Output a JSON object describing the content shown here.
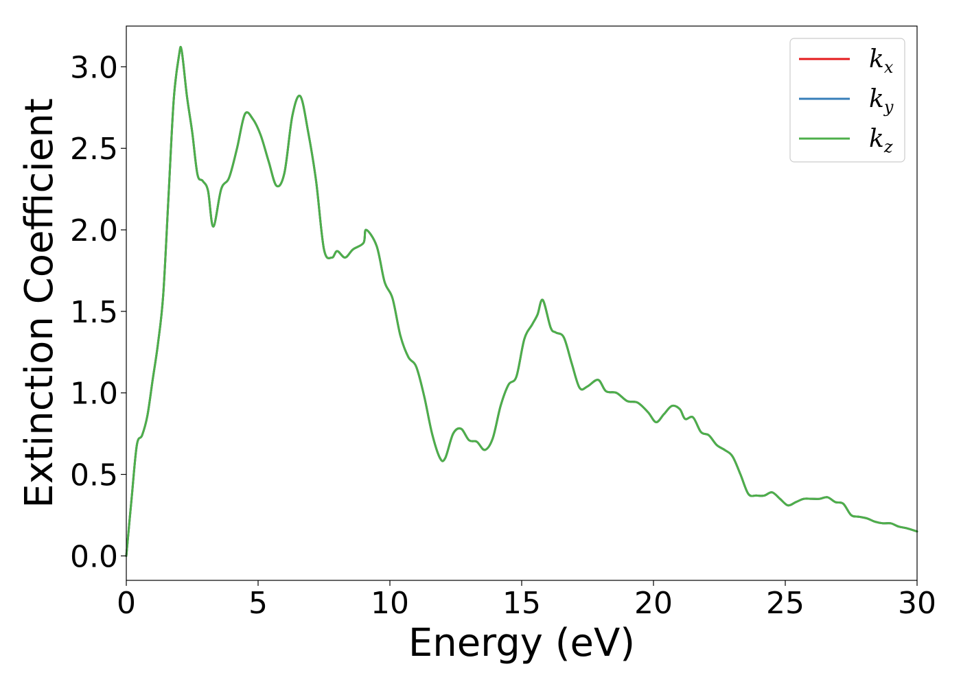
{
  "chart_data": {
    "type": "line",
    "xlabel": "Energy (eV)",
    "ylabel": "Extinction Coefficient",
    "xlim": [
      0,
      30
    ],
    "ylim": [
      -0.15,
      3.25
    ],
    "xticks": [
      0,
      5,
      10,
      15,
      20,
      25,
      30
    ],
    "yticks": [
      0.0,
      0.5,
      1.0,
      1.5,
      2.0,
      2.5,
      3.0
    ],
    "xtick_labels": [
      "0",
      "5",
      "10",
      "15",
      "20",
      "25",
      "30"
    ],
    "ytick_labels": [
      "0.0",
      "0.5",
      "1.0",
      "1.5",
      "2.0",
      "2.5",
      "3.0"
    ],
    "grid": false,
    "legend_position": "top-right",
    "x": [
      0,
      0.2,
      0.4,
      0.6,
      0.8,
      1.0,
      1.2,
      1.4,
      1.6,
      1.8,
      2.0,
      2.1,
      2.3,
      2.5,
      2.7,
      2.9,
      3.1,
      3.3,
      3.6,
      3.9,
      4.2,
      4.5,
      4.8,
      5.1,
      5.4,
      5.7,
      6.0,
      6.3,
      6.6,
      6.9,
      7.2,
      7.5,
      7.8,
      8.0,
      8.3,
      8.6,
      9.0,
      9.1,
      9.5,
      9.8,
      10.1,
      10.4,
      10.7,
      11.0,
      11.3,
      11.6,
      11.9,
      12.1,
      12.4,
      12.7,
      13.0,
      13.3,
      13.6,
      13.9,
      14.2,
      14.5,
      14.8,
      15.1,
      15.4,
      15.6,
      15.8,
      16.1,
      16.3,
      16.6,
      16.9,
      17.2,
      17.5,
      17.9,
      18.2,
      18.6,
      19.0,
      19.4,
      19.8,
      20.1,
      20.4,
      20.7,
      21.0,
      21.2,
      21.5,
      21.8,
      22.1,
      22.4,
      22.7,
      23.0,
      23.3,
      23.6,
      23.9,
      24.2,
      24.5,
      24.8,
      25.1,
      25.4,
      25.7,
      26.0,
      26.3,
      26.6,
      26.9,
      27.2,
      27.5,
      27.8,
      28.1,
      28.4,
      28.7,
      29.0,
      29.3,
      29.6,
      30.0
    ],
    "series": [
      {
        "name": "k",
        "subscript": "x",
        "color": "#e41a1c",
        "values": [
          0.0,
          0.35,
          0.68,
          0.74,
          0.86,
          1.08,
          1.3,
          1.6,
          2.2,
          2.8,
          3.07,
          3.1,
          2.82,
          2.6,
          2.34,
          2.3,
          2.24,
          2.02,
          2.25,
          2.32,
          2.5,
          2.71,
          2.68,
          2.58,
          2.42,
          2.27,
          2.35,
          2.7,
          2.82,
          2.6,
          2.3,
          1.88,
          1.83,
          1.87,
          1.83,
          1.88,
          1.92,
          2.0,
          1.9,
          1.68,
          1.58,
          1.35,
          1.22,
          1.16,
          0.98,
          0.75,
          0.6,
          0.6,
          0.75,
          0.78,
          0.71,
          0.7,
          0.65,
          0.72,
          0.92,
          1.05,
          1.1,
          1.33,
          1.42,
          1.48,
          1.57,
          1.4,
          1.37,
          1.34,
          1.18,
          1.03,
          1.04,
          1.08,
          1.01,
          1.0,
          0.95,
          0.94,
          0.88,
          0.82,
          0.87,
          0.92,
          0.9,
          0.84,
          0.85,
          0.76,
          0.74,
          0.68,
          0.65,
          0.61,
          0.5,
          0.38,
          0.37,
          0.37,
          0.39,
          0.35,
          0.31,
          0.33,
          0.35,
          0.35,
          0.35,
          0.36,
          0.33,
          0.32,
          0.25,
          0.24,
          0.23,
          0.21,
          0.2,
          0.2,
          0.18,
          0.17,
          0.15
        ]
      },
      {
        "name": "k",
        "subscript": "y",
        "color": "#377eb8",
        "values": [
          0.0,
          0.35,
          0.68,
          0.74,
          0.86,
          1.08,
          1.3,
          1.6,
          2.2,
          2.8,
          3.07,
          3.1,
          2.82,
          2.6,
          2.34,
          2.3,
          2.24,
          2.02,
          2.25,
          2.32,
          2.5,
          2.71,
          2.68,
          2.58,
          2.42,
          2.27,
          2.35,
          2.7,
          2.82,
          2.6,
          2.3,
          1.88,
          1.83,
          1.87,
          1.83,
          1.88,
          1.92,
          2.0,
          1.9,
          1.68,
          1.58,
          1.35,
          1.22,
          1.16,
          0.98,
          0.75,
          0.6,
          0.6,
          0.75,
          0.78,
          0.71,
          0.7,
          0.65,
          0.72,
          0.92,
          1.05,
          1.1,
          1.33,
          1.42,
          1.48,
          1.57,
          1.4,
          1.37,
          1.34,
          1.18,
          1.03,
          1.04,
          1.08,
          1.01,
          1.0,
          0.95,
          0.94,
          0.88,
          0.82,
          0.87,
          0.92,
          0.9,
          0.84,
          0.85,
          0.76,
          0.74,
          0.68,
          0.65,
          0.61,
          0.5,
          0.38,
          0.37,
          0.37,
          0.39,
          0.35,
          0.31,
          0.33,
          0.35,
          0.35,
          0.35,
          0.36,
          0.33,
          0.32,
          0.25,
          0.24,
          0.23,
          0.21,
          0.2,
          0.2,
          0.18,
          0.17,
          0.15
        ]
      },
      {
        "name": "k",
        "subscript": "z",
        "color": "#4daf4a",
        "values": [
          0.0,
          0.35,
          0.68,
          0.74,
          0.86,
          1.08,
          1.3,
          1.6,
          2.2,
          2.8,
          3.07,
          3.1,
          2.82,
          2.6,
          2.34,
          2.3,
          2.24,
          2.02,
          2.25,
          2.32,
          2.5,
          2.71,
          2.68,
          2.58,
          2.42,
          2.27,
          2.35,
          2.7,
          2.82,
          2.6,
          2.3,
          1.88,
          1.83,
          1.87,
          1.83,
          1.88,
          1.92,
          2.0,
          1.9,
          1.68,
          1.58,
          1.35,
          1.22,
          1.16,
          0.98,
          0.75,
          0.6,
          0.6,
          0.75,
          0.78,
          0.71,
          0.7,
          0.65,
          0.72,
          0.92,
          1.05,
          1.1,
          1.33,
          1.42,
          1.48,
          1.57,
          1.4,
          1.37,
          1.34,
          1.18,
          1.03,
          1.04,
          1.08,
          1.01,
          1.0,
          0.95,
          0.94,
          0.88,
          0.82,
          0.87,
          0.92,
          0.9,
          0.84,
          0.85,
          0.76,
          0.74,
          0.68,
          0.65,
          0.61,
          0.5,
          0.38,
          0.37,
          0.37,
          0.39,
          0.35,
          0.31,
          0.33,
          0.35,
          0.35,
          0.35,
          0.36,
          0.33,
          0.32,
          0.25,
          0.24,
          0.23,
          0.21,
          0.2,
          0.2,
          0.18,
          0.17,
          0.15
        ]
      }
    ]
  }
}
